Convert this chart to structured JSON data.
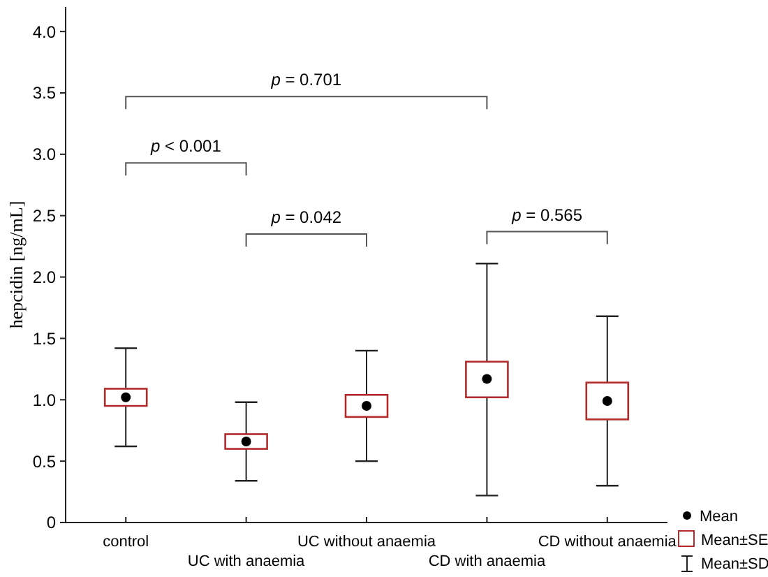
{
  "chart_data": {
    "type": "box",
    "ylabel": "hepcidin [ng/mL]",
    "categories": [
      "control",
      "UC with anaemia",
      "UC without anaemia",
      "CD with anaemia",
      "CD without anaemia"
    ],
    "series": [
      {
        "color": "#b22a2a",
        "boxes": [
          {
            "low": 0.62,
            "q1": 0.95,
            "median": 1.02,
            "q3": 1.09,
            "high": 1.42
          },
          {
            "low": 0.34,
            "q1": 0.6,
            "median": 0.66,
            "q3": 0.72,
            "high": 0.98
          },
          {
            "low": 0.5,
            "q1": 0.86,
            "median": 0.95,
            "q3": 1.04,
            "high": 1.4
          },
          {
            "low": 0.22,
            "q1": 1.02,
            "median": 1.17,
            "q3": 1.31,
            "high": 2.11
          },
          {
            "low": 0.3,
            "q1": 0.84,
            "median": 0.99,
            "q3": 1.14,
            "high": 1.68
          }
        ]
      }
    ],
    "ylim": [
      0,
      4.2
    ],
    "yticks": [
      0,
      {
        "value": 0.5,
        "label": "0.5"
      },
      {
        "value": 1,
        "label": "1.0"
      },
      {
        "value": 1.5,
        "label": "1.5"
      },
      {
        "value": 2,
        "label": "2.0"
      },
      {
        "value": 2.5,
        "label": "2.5"
      },
      {
        "value": 3,
        "label": "3.0"
      },
      {
        "value": 3.5,
        "label": "3.5"
      },
      {
        "value": 4,
        "label": "4.0"
      }
    ],
    "annotations": [
      "p < 0.001",
      "p = 0.042",
      "p = 0.565",
      "p = 0.701",
      "Mean",
      "Mean±SE",
      "Mean±SD"
    ]
  }
}
